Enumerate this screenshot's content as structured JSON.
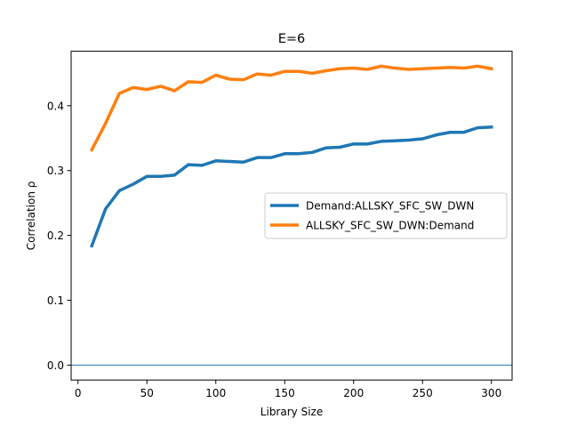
{
  "chart_data": {
    "type": "line",
    "title": "E=6",
    "xlabel": "Library Size",
    "ylabel": "Correlation ρ",
    "xlim": [
      -5,
      315
    ],
    "ylim": [
      -0.023,
      0.484
    ],
    "xticks": [
      0,
      50,
      100,
      150,
      200,
      250,
      300
    ],
    "yticks": [
      0.0,
      0.1,
      0.2,
      0.3,
      0.4
    ],
    "ytick_labels": [
      "0.0",
      "0.1",
      "0.2",
      "0.3",
      "0.4"
    ],
    "grid": false,
    "legend_position": "center-right",
    "hline": {
      "y": 0,
      "color": "#1f77b4"
    },
    "x": [
      10,
      20,
      30,
      40,
      50,
      60,
      70,
      80,
      90,
      100,
      110,
      120,
      130,
      140,
      150,
      160,
      170,
      180,
      190,
      200,
      210,
      220,
      230,
      240,
      250,
      260,
      270,
      280,
      290,
      300
    ],
    "series": [
      {
        "name": "Demand:ALLSKY_SFC_SW_DWN",
        "color": "#1f77b4",
        "values": [
          0.184,
          0.241,
          0.269,
          0.279,
          0.291,
          0.291,
          0.293,
          0.309,
          0.308,
          0.315,
          0.314,
          0.313,
          0.32,
          0.32,
          0.326,
          0.326,
          0.328,
          0.335,
          0.336,
          0.341,
          0.341,
          0.345,
          0.346,
          0.347,
          0.349,
          0.355,
          0.359,
          0.359,
          0.366,
          0.367
        ]
      },
      {
        "name": "ALLSKY_SFC_SW_DWN:Demand",
        "color": "#ff7f0e",
        "values": [
          0.332,
          0.373,
          0.419,
          0.428,
          0.425,
          0.43,
          0.423,
          0.437,
          0.436,
          0.447,
          0.441,
          0.44,
          0.449,
          0.447,
          0.453,
          0.453,
          0.45,
          0.454,
          0.457,
          0.458,
          0.456,
          0.461,
          0.458,
          0.456,
          0.457,
          0.458,
          0.459,
          0.458,
          0.461,
          0.457
        ]
      }
    ]
  }
}
